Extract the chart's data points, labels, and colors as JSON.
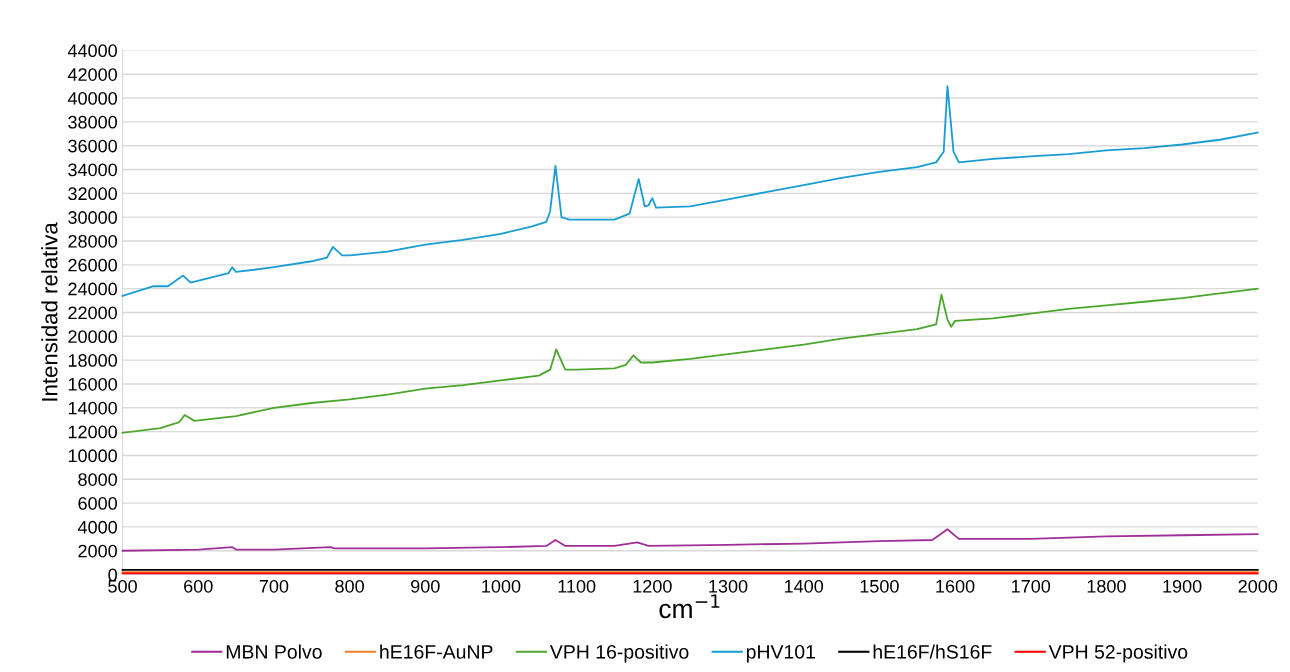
{
  "chart_data": {
    "type": "line",
    "xlabel": "cm$^{−1}$",
    "ylabel": "Intensidad relativa",
    "xlim": [
      500,
      2000
    ],
    "ylim": [
      0,
      44000
    ],
    "xticks": [
      500,
      600,
      700,
      800,
      900,
      1000,
      1100,
      1200,
      1300,
      1400,
      1500,
      1600,
      1700,
      1800,
      1900,
      2000
    ],
    "yticks": [
      0,
      2000,
      4000,
      6000,
      8000,
      10000,
      12000,
      14000,
      16000,
      18000,
      20000,
      22000,
      24000,
      26000,
      28000,
      30000,
      32000,
      34000,
      36000,
      38000,
      40000,
      42000,
      44000
    ],
    "grid": "y",
    "legend": "bottom",
    "marker": "none",
    "line_style": "solid",
    "series": [
      {
        "name": "MBN Polvo",
        "color": "#a03098",
        "x": [
          500,
          600,
          645,
          650,
          700,
          775,
          780,
          900,
          1000,
          1060,
          1072,
          1085,
          1150,
          1180,
          1195,
          1300,
          1400,
          1500,
          1570,
          1590,
          1605,
          1700,
          1800,
          1900,
          2000
        ],
        "values": [
          2000,
          2100,
          2300,
          2100,
          2100,
          2300,
          2200,
          2200,
          2300,
          2400,
          2900,
          2400,
          2400,
          2700,
          2400,
          2500,
          2600,
          2800,
          2900,
          3800,
          3000,
          3000,
          3200,
          3300,
          3400
        ]
      },
      {
        "name": "hE16F-AuNP",
        "color": "#f07c30",
        "x": [
          500,
          1000,
          1500,
          2000
        ],
        "values": [
          200,
          200,
          200,
          200
        ]
      },
      {
        "name": "VPH 16-positivo",
        "color": "#4ca62c",
        "x": [
          500,
          550,
          575,
          582,
          595,
          650,
          700,
          750,
          800,
          850,
          900,
          950,
          1000,
          1050,
          1065,
          1073,
          1085,
          1100,
          1150,
          1165,
          1175,
          1185,
          1200,
          1250,
          1300,
          1350,
          1400,
          1450,
          1500,
          1550,
          1575,
          1582,
          1590,
          1595,
          1600,
          1650,
          1700,
          1750,
          1800,
          1850,
          1900,
          1950,
          2000
        ],
        "values": [
          11900,
          12300,
          12800,
          13400,
          12900,
          13300,
          14000,
          14400,
          14700,
          15100,
          15600,
          15900,
          16300,
          16700,
          17200,
          18900,
          17200,
          17200,
          17300,
          17600,
          18400,
          17800,
          17800,
          18100,
          18500,
          18900,
          19300,
          19800,
          20200,
          20600,
          21000,
          23500,
          21400,
          20800,
          21300,
          21500,
          21900,
          22300,
          22600,
          22900,
          23200,
          23600,
          24000
        ]
      },
      {
        "name": "pHV101",
        "color": "#1a9cd4",
        "x": [
          500,
          540,
          560,
          580,
          590,
          640,
          645,
          650,
          700,
          750,
          770,
          778,
          790,
          800,
          850,
          900,
          950,
          1000,
          1040,
          1060,
          1065,
          1072,
          1080,
          1090,
          1150,
          1170,
          1182,
          1190,
          1195,
          1200,
          1205,
          1250,
          1300,
          1350,
          1400,
          1450,
          1500,
          1550,
          1575,
          1585,
          1590,
          1598,
          1605,
          1650,
          1700,
          1750,
          1800,
          1850,
          1900,
          1950,
          2000
        ],
        "values": [
          23400,
          24200,
          24200,
          25100,
          24500,
          25300,
          25800,
          25400,
          25800,
          26300,
          26600,
          27500,
          26800,
          26800,
          27100,
          27700,
          28100,
          28600,
          29200,
          29600,
          30500,
          34300,
          30000,
          29800,
          29800,
          30300,
          33200,
          30900,
          31000,
          31600,
          30800,
          30900,
          31500,
          32100,
          32700,
          33300,
          33800,
          34200,
          34600,
          35500,
          41000,
          35500,
          34600,
          34900,
          35100,
          35300,
          35600,
          35800,
          36100,
          36500,
          37100
        ]
      },
      {
        "name": "hE16F/hS16F",
        "color": "#000000",
        "x": [
          500,
          1000,
          1500,
          2000
        ],
        "values": [
          400,
          400,
          400,
          400
        ]
      },
      {
        "name": "VPH 52-positivo",
        "color": "#ff0000",
        "x": [
          500,
          1000,
          1500,
          2000
        ],
        "values": [
          100,
          100,
          100,
          100
        ]
      }
    ]
  }
}
